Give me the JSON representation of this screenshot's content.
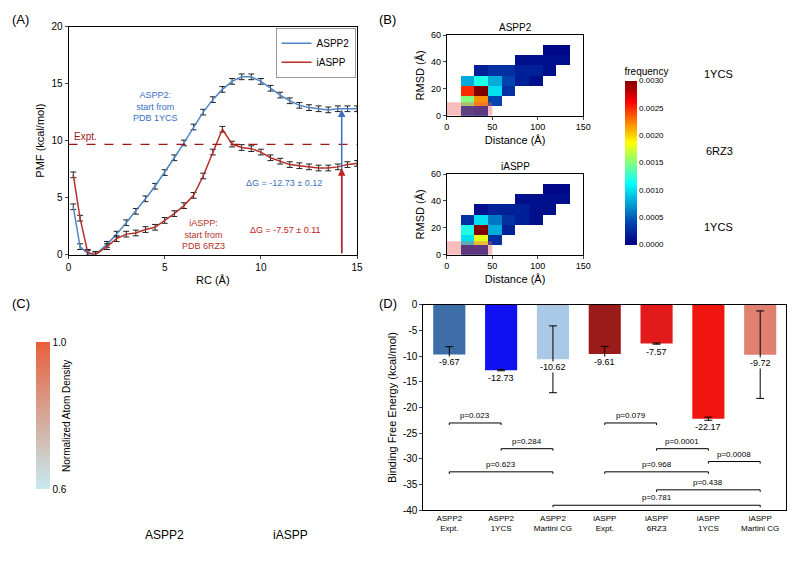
{
  "chart_data": [
    {
      "panel": "(A)",
      "type": "line",
      "x_label": "RC (Å)",
      "y_label": "PMF (kcal/mol)",
      "xlim": [
        0,
        15
      ],
      "xticks": [
        0,
        5,
        10,
        15
      ],
      "ylim": [
        0,
        20
      ],
      "yticks": [
        0,
        5,
        10,
        15,
        20
      ],
      "legend": "upper right",
      "x": [
        0.25,
        0.6,
        1.0,
        1.4,
        2.0,
        2.5,
        3.0,
        3.5,
        4.0,
        4.5,
        5.0,
        5.5,
        6.0,
        6.5,
        7.0,
        7.5,
        8.0,
        8.5,
        9.0,
        9.5,
        10.0,
        10.5,
        11.0,
        11.5,
        12.0,
        12.5,
        13.0,
        13.5,
        14.0,
        14.5,
        15.0
      ],
      "series": [
        {
          "name": "ASPP2",
          "color": "#4f86c6",
          "values": [
            4.2,
            0.7,
            0.1,
            0.0,
            0.9,
            1.8,
            2.8,
            3.8,
            4.9,
            6.0,
            7.2,
            8.5,
            9.8,
            11.2,
            12.5,
            13.6,
            14.5,
            15.2,
            15.6,
            15.6,
            15.2,
            14.6,
            14.0,
            13.5,
            13.1,
            12.9,
            12.8,
            12.7,
            12.8,
            12.8,
            12.8
          ],
          "errors": [
            0.25,
            0.25,
            0.25,
            0.25,
            0.25,
            0.25,
            0.25,
            0.25,
            0.25,
            0.25,
            0.25,
            0.25,
            0.25,
            0.25,
            0.25,
            0.25,
            0.25,
            0.25,
            0.25,
            0.25,
            0.25,
            0.25,
            0.25,
            0.25,
            0.25,
            0.25,
            0.25,
            0.25,
            0.25,
            0.25,
            0.25
          ]
        },
        {
          "name": "iASPP",
          "color": "#b5302a",
          "values": [
            7.0,
            3.2,
            0.2,
            0.0,
            0.7,
            1.4,
            1.8,
            1.9,
            2.2,
            2.4,
            3.0,
            3.6,
            4.3,
            5.2,
            6.9,
            9.0,
            11.0,
            9.7,
            9.4,
            9.3,
            9.0,
            8.5,
            8.2,
            7.9,
            7.8,
            7.7,
            7.6,
            7.6,
            7.7,
            7.9,
            8.0
          ],
          "errors": [
            0.25,
            0.25,
            0.25,
            0.25,
            0.25,
            0.25,
            0.25,
            0.25,
            0.25,
            0.25,
            0.25,
            0.25,
            0.25,
            0.25,
            0.25,
            0.25,
            0.25,
            0.25,
            0.25,
            0.25,
            0.25,
            0.25,
            0.25,
            0.25,
            0.25,
            0.25,
            0.25,
            0.25,
            0.25,
            0.25,
            0.25
          ]
        }
      ],
      "expt": {
        "label": "Expt.",
        "value": 9.67,
        "color": "#a31515"
      },
      "annotations": [
        {
          "text": "ASPP2:\nstart from\nPDB 1YCS",
          "x": 4.5,
          "y": 13,
          "color": "#3a6fc4"
        },
        {
          "text": "iASPP:\nstart from\nPDB 6RZ3",
          "x": 7.0,
          "y": 1.75,
          "color": "#b5302a"
        },
        {
          "text": "ΔG = -12.73 ± 0.12",
          "x": 11.2,
          "y": 6.3,
          "color": "#3a6fc4"
        },
        {
          "text": "ΔG = -7.57 ± 0.11",
          "x": 11.3,
          "y": 2.2,
          "color": "#c0201a"
        }
      ],
      "arrows": [
        {
          "x": 14.2,
          "from": 0,
          "to": 12.73,
          "color": "#3a6fc4"
        },
        {
          "x": 14.2,
          "from": 0,
          "to": 7.57,
          "color": "#c0201a"
        }
      ]
    },
    {
      "panel": "(B)",
      "type": "heatmap",
      "x_label": "Distance (Å)",
      "y_label": "RMSD (Å)",
      "xlim": [
        0,
        150
      ],
      "xticks": [
        0,
        50,
        100,
        150
      ],
      "ylim": [
        0,
        60
      ],
      "yticks": [
        0,
        20,
        40,
        60
      ],
      "highlight": {
        "x": [
          0,
          50
        ],
        "y": [
          0,
          10
        ]
      },
      "colorbar": {
        "title": "frequency",
        "range": [
          0,
          0.003
        ],
        "ticks": [
          {
            "value": 0,
            "label": "0.0000"
          },
          {
            "value": 0.0005,
            "label": "0.0005"
          },
          {
            "value": 0.001,
            "label": "0.0010"
          },
          {
            "value": 0.0015,
            "label": "0.0015"
          },
          {
            "value": 0.002,
            "label": "0.0020"
          },
          {
            "value": 0.0025,
            "label": "0.0025"
          },
          {
            "value": 0.003,
            "label": "0.0030"
          }
        ]
      },
      "x": [
        7.5,
        22.5,
        37.5,
        52.5,
        67.5,
        82.5,
        97.5,
        112.5,
        127.5,
        142.5
      ],
      "y": [
        3.75,
        11.25,
        18.75,
        26.25,
        33.75,
        41.25,
        48.75,
        56.25
      ],
      "plots": [
        {
          "title": "ASPP2",
          "z": [
            [
              null,
              0.0003,
              0.0002,
              null,
              null,
              null,
              null,
              null,
              null,
              null
            ],
            [
              null,
              0.0015,
              0.0022,
              0.0004,
              null,
              null,
              null,
              null,
              null,
              null
            ],
            [
              null,
              0.0025,
              0.003,
              0.001,
              0.0003,
              null,
              null,
              null,
              null,
              null
            ],
            [
              null,
              0.0008,
              0.0012,
              0.0008,
              0.0004,
              0.0002,
              0.0001,
              null,
              null,
              null
            ],
            [
              null,
              null,
              0.0002,
              0.0003,
              0.0003,
              0.0002,
              0.0002,
              0.0001,
              null,
              null
            ],
            [
              null,
              null,
              null,
              null,
              null,
              0.0001,
              0.0001,
              0.0001,
              0.0001,
              null
            ],
            [
              null,
              null,
              null,
              null,
              null,
              null,
              null,
              5e-05,
              5e-05,
              null
            ],
            [
              null,
              null,
              null,
              null,
              null,
              null,
              null,
              null,
              null,
              null
            ]
          ]
        },
        {
          "title": "iASPP",
          "z": [
            [
              null,
              0.0002,
              0.0002,
              null,
              null,
              null,
              null,
              null,
              null,
              null
            ],
            [
              null,
              0.001,
              0.0018,
              0.0003,
              null,
              null,
              null,
              null,
              null,
              null
            ],
            [
              null,
              0.0012,
              0.003,
              0.0008,
              0.0002,
              null,
              null,
              null,
              null,
              null
            ],
            [
              null,
              0.0003,
              0.001,
              0.0006,
              0.0003,
              0.0002,
              0.0001,
              null,
              null,
              null
            ],
            [
              null,
              null,
              0.0001,
              0.0002,
              0.0002,
              0.0002,
              0.0001,
              0.0001,
              null,
              null
            ],
            [
              null,
              null,
              null,
              null,
              null,
              0.0001,
              0.0001,
              0.0001,
              0.0001,
              null
            ],
            [
              null,
              null,
              null,
              null,
              null,
              null,
              null,
              5e-05,
              5e-05,
              null
            ],
            [
              null,
              null,
              null,
              null,
              null,
              null,
              null,
              null,
              null,
              null
            ]
          ]
        }
      ],
      "structure_labels": [
        "1YCS",
        "6RZ3",
        "1YCS"
      ]
    },
    {
      "panel": "(C)",
      "type": "colorbar",
      "title": "Normalized Atom Density",
      "range": [
        0.6,
        1.0
      ],
      "ticks": [
        0.6,
        {
          "value": 1,
          "label": "1.0"
        }
      ],
      "colors": [
        "#c6ebf0",
        "#e8603c"
      ],
      "labels": [
        "ASPP2",
        "iASPP"
      ]
    },
    {
      "panel": "(D)",
      "type": "bar",
      "y_label": "Binding Free Energy (kcal/mol)",
      "categories": [
        "ASPP2 Expt.",
        "ASPP2 1YCS",
        "ASPP2 Martini CG",
        "iASPP Expt.",
        "iASPP 6RZ3",
        "iASPP 1YCS",
        "iASPP Martini CG"
      ],
      "values": [
        -9.67,
        -12.73,
        -10.62,
        -9.61,
        -7.57,
        -22.17,
        -9.72
      ],
      "errors": [
        1.5,
        0.12,
        6.5,
        1.5,
        0.11,
        0.3,
        8.5
      ],
      "colors": [
        "#3d6ea8",
        "#1010f0",
        "#a9c9e6",
        "#9b1b1b",
        "#e31a1c",
        "#f0150f",
        "#e08070"
      ],
      "ylim": [
        -40,
        0
      ],
      "yticks": [
        -40,
        -35,
        -30,
        -25,
        -20,
        -15,
        -10,
        -5,
        0
      ],
      "data_labels": true,
      "comparisons": [
        {
          "pair": [
            0,
            1
          ],
          "y": -23,
          "label": "p=0.023"
        },
        {
          "pair": [
            1,
            2
          ],
          "y": -28,
          "label": "p=0.284"
        },
        {
          "pair": [
            0,
            2
          ],
          "y": -32.5,
          "label": "p=0.623"
        },
        {
          "pair": [
            3,
            4
          ],
          "y": -23,
          "label": "p=0.079"
        },
        {
          "pair": [
            4,
            5
          ],
          "y": -28,
          "label": "p=0.0001"
        },
        {
          "pair": [
            5,
            6
          ],
          "y": -30.5,
          "label": "p=0.0008"
        },
        {
          "pair": [
            3,
            5
          ],
          "y": -32.5,
          "label": "p=0.968"
        },
        {
          "pair": [
            4,
            6
          ],
          "y": -36,
          "label": "p=0.438"
        },
        {
          "pair": [
            2,
            6
          ],
          "y": -39,
          "label": "p=0.781"
        }
      ]
    }
  ]
}
